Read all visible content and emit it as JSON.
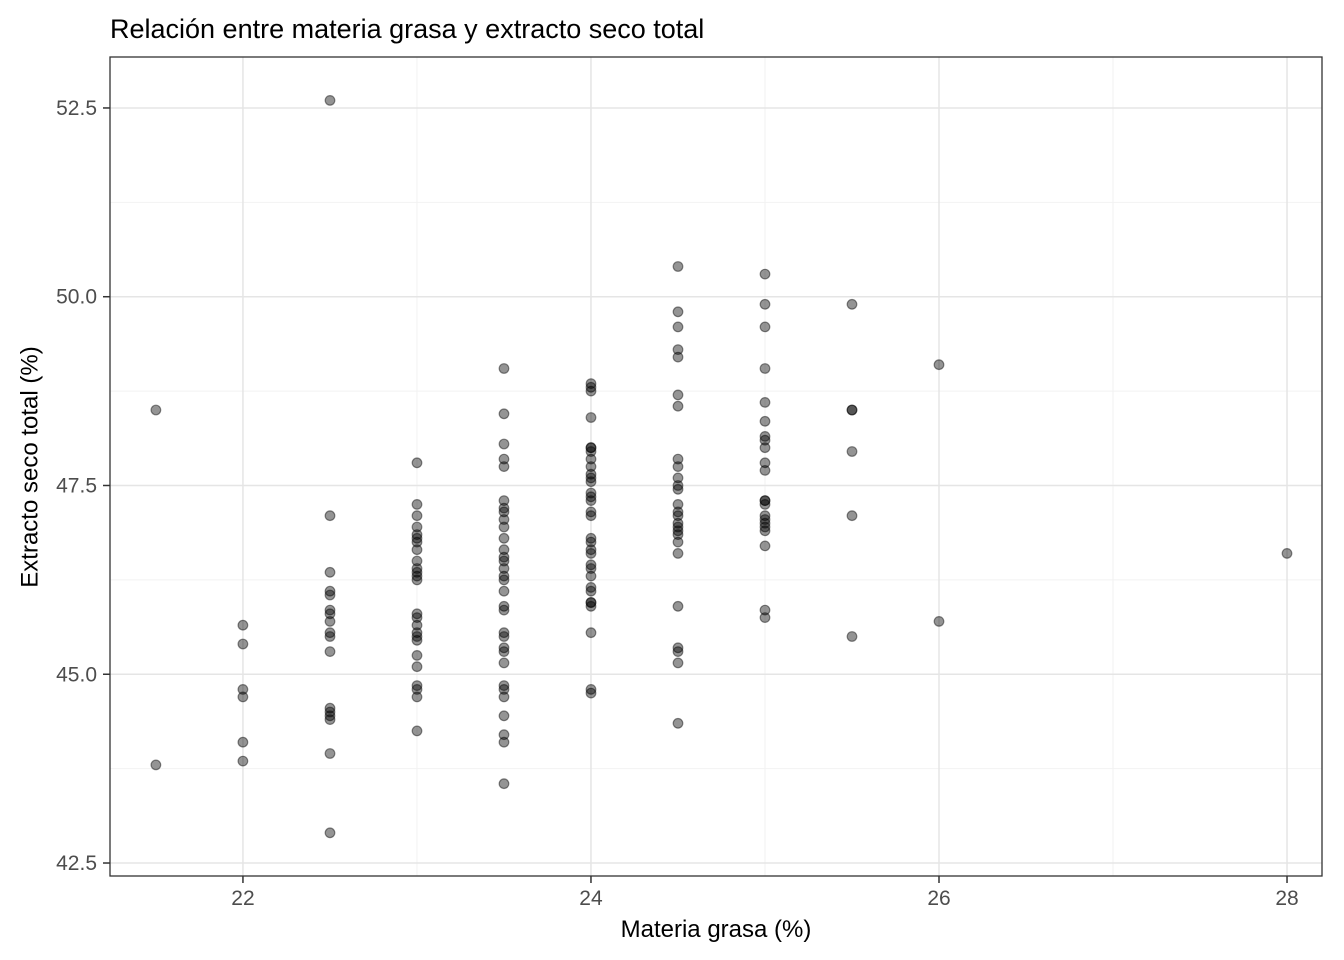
{
  "title": "Relación entre materia grasa y extracto seco total",
  "chart_data": {
    "type": "scatter",
    "title": "Relación entre materia grasa y extracto seco total",
    "xlabel": "Materia grasa (%)",
    "ylabel": "Extracto seco total (%)",
    "xlim": [
      21.236,
      28.201
    ],
    "ylim": [
      42.328,
      53.175
    ],
    "x_major_ticks": [
      22,
      24,
      26,
      28
    ],
    "x_tick_labels": [
      "22",
      "24",
      "26",
      "28"
    ],
    "x_minor_ticks": [
      23,
      25,
      27
    ],
    "y_major_ticks": [
      42.5,
      45.0,
      47.5,
      50.0,
      52.5
    ],
    "y_tick_labels": [
      "42.5",
      "45.0",
      "47.5",
      "50.0",
      "52.5"
    ],
    "y_minor_ticks": [
      43.75,
      46.25,
      48.75,
      51.25
    ],
    "grid": "major+minor",
    "legend": "none",
    "style": {
      "panel_border_color": "#333333",
      "major_grid_color": "#e5e5e5",
      "minor_grid_color": "#f2f2f2",
      "tick_color": "#333333",
      "tick_label_color": "#4d4d4d",
      "point_color": "#000000",
      "point_fill_opacity": 0.42,
      "point_stroke_opacity": 0.45,
      "point_radius": 4.8
    },
    "points": [
      [
        21.5,
        48.5
      ],
      [
        21.5,
        43.8
      ],
      [
        22,
        45.65
      ],
      [
        22,
        45.4
      ],
      [
        22,
        44.8
      ],
      [
        22,
        44.7
      ],
      [
        22,
        44.1
      ],
      [
        22,
        43.85
      ],
      [
        22.5,
        52.6
      ],
      [
        22.5,
        47.1
      ],
      [
        22.5,
        46.35
      ],
      [
        22.5,
        46.1
      ],
      [
        22.5,
        46.05
      ],
      [
        22.5,
        45.85
      ],
      [
        22.5,
        45.8
      ],
      [
        22.5,
        45.7
      ],
      [
        22.5,
        45.55
      ],
      [
        22.5,
        45.5
      ],
      [
        22.5,
        45.3
      ],
      [
        22.5,
        44.55
      ],
      [
        22.5,
        44.5
      ],
      [
        22.5,
        44.45
      ],
      [
        22.5,
        44.4
      ],
      [
        22.5,
        43.95
      ],
      [
        22.5,
        42.9
      ],
      [
        23,
        47.8
      ],
      [
        23,
        47.25
      ],
      [
        23,
        47.1
      ],
      [
        23,
        46.95
      ],
      [
        23,
        46.85
      ],
      [
        23,
        46.8
      ],
      [
        23,
        46.75
      ],
      [
        23,
        46.65
      ],
      [
        23,
        46.5
      ],
      [
        23,
        46.4
      ],
      [
        23,
        46.35
      ],
      [
        23,
        46.3
      ],
      [
        23,
        46.25
      ],
      [
        23,
        45.8
      ],
      [
        23,
        45.75
      ],
      [
        23,
        45.65
      ],
      [
        23,
        45.55
      ],
      [
        23,
        45.5
      ],
      [
        23,
        45.45
      ],
      [
        23,
        45.25
      ],
      [
        23,
        45.1
      ],
      [
        23,
        44.85
      ],
      [
        23,
        44.8
      ],
      [
        23,
        44.7
      ],
      [
        23,
        44.25
      ],
      [
        23.5,
        49.05
      ],
      [
        23.5,
        48.45
      ],
      [
        23.5,
        48.05
      ],
      [
        23.5,
        47.85
      ],
      [
        23.5,
        47.75
      ],
      [
        23.5,
        47.3
      ],
      [
        23.5,
        47.2
      ],
      [
        23.5,
        47.15
      ],
      [
        23.5,
        47.05
      ],
      [
        23.5,
        46.95
      ],
      [
        23.5,
        46.8
      ],
      [
        23.5,
        46.65
      ],
      [
        23.5,
        46.55
      ],
      [
        23.5,
        46.5
      ],
      [
        23.5,
        46.4
      ],
      [
        23.5,
        46.3
      ],
      [
        23.5,
        46.25
      ],
      [
        23.5,
        46.1
      ],
      [
        23.5,
        45.9
      ],
      [
        23.5,
        45.85
      ],
      [
        23.5,
        45.55
      ],
      [
        23.5,
        45.5
      ],
      [
        23.5,
        45.35
      ],
      [
        23.5,
        45.3
      ],
      [
        23.5,
        45.15
      ],
      [
        23.5,
        44.85
      ],
      [
        23.5,
        44.8
      ],
      [
        23.5,
        44.7
      ],
      [
        23.5,
        44.45
      ],
      [
        23.5,
        44.2
      ],
      [
        23.5,
        44.1
      ],
      [
        23.5,
        43.55
      ],
      [
        24,
        48.85
      ],
      [
        24,
        48.8
      ],
      [
        24,
        48.75
      ],
      [
        24,
        48.4
      ],
      [
        24,
        48.0
      ],
      [
        24,
        48.0
      ],
      [
        24,
        47.95
      ],
      [
        24,
        47.85
      ],
      [
        24,
        47.75
      ],
      [
        24,
        47.65
      ],
      [
        24,
        47.6
      ],
      [
        24,
        47.55
      ],
      [
        24,
        47.4
      ],
      [
        24,
        47.35
      ],
      [
        24,
        47.3
      ],
      [
        24,
        47.15
      ],
      [
        24,
        47.1
      ],
      [
        24,
        46.8
      ],
      [
        24,
        46.75
      ],
      [
        24,
        46.65
      ],
      [
        24,
        46.6
      ],
      [
        24,
        46.45
      ],
      [
        24,
        46.4
      ],
      [
        24,
        46.3
      ],
      [
        24,
        46.15
      ],
      [
        24,
        46.1
      ],
      [
        24,
        45.95
      ],
      [
        24,
        45.95
      ],
      [
        24,
        45.9
      ],
      [
        24,
        45.55
      ],
      [
        24,
        44.8
      ],
      [
        24,
        44.75
      ],
      [
        24.5,
        50.4
      ],
      [
        24.5,
        49.8
      ],
      [
        24.5,
        49.6
      ],
      [
        24.5,
        49.3
      ],
      [
        24.5,
        49.2
      ],
      [
        24.5,
        48.7
      ],
      [
        24.5,
        48.55
      ],
      [
        24.5,
        47.85
      ],
      [
        24.5,
        47.75
      ],
      [
        24.5,
        47.6
      ],
      [
        24.5,
        47.5
      ],
      [
        24.5,
        47.45
      ],
      [
        24.5,
        47.25
      ],
      [
        24.5,
        47.15
      ],
      [
        24.5,
        47.1
      ],
      [
        24.5,
        47.0
      ],
      [
        24.5,
        46.95
      ],
      [
        24.5,
        46.9
      ],
      [
        24.5,
        46.85
      ],
      [
        24.5,
        46.75
      ],
      [
        24.5,
        46.6
      ],
      [
        24.5,
        45.9
      ],
      [
        24.5,
        45.35
      ],
      [
        24.5,
        45.3
      ],
      [
        24.5,
        45.15
      ],
      [
        24.5,
        44.35
      ],
      [
        25,
        50.3
      ],
      [
        25,
        49.9
      ],
      [
        25,
        49.6
      ],
      [
        25,
        49.05
      ],
      [
        25,
        48.6
      ],
      [
        25,
        48.35
      ],
      [
        25,
        48.15
      ],
      [
        25,
        48.1
      ],
      [
        25,
        48.0
      ],
      [
        25,
        47.8
      ],
      [
        25,
        47.7
      ],
      [
        25,
        47.3
      ],
      [
        25,
        47.3
      ],
      [
        25,
        47.25
      ],
      [
        25,
        47.1
      ],
      [
        25,
        47.05
      ],
      [
        25,
        47.0
      ],
      [
        25,
        46.95
      ],
      [
        25,
        46.9
      ],
      [
        25,
        46.7
      ],
      [
        25,
        45.85
      ],
      [
        25,
        45.75
      ],
      [
        25.5,
        49.9
      ],
      [
        25.5,
        48.5
      ],
      [
        25.5,
        48.5
      ],
      [
        25.5,
        47.95
      ],
      [
        25.5,
        47.1
      ],
      [
        25.5,
        45.5
      ],
      [
        26,
        49.1
      ],
      [
        26,
        45.7
      ],
      [
        28,
        46.6
      ]
    ]
  }
}
